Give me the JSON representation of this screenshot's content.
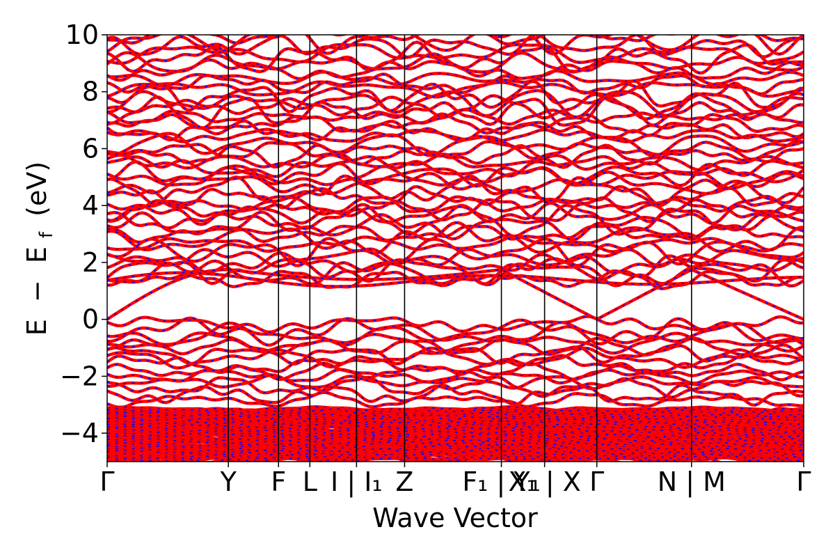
{
  "chart_data": {
    "type": "line",
    "title": "",
    "xlabel": "Wave Vector",
    "ylabel_parts": [
      "E",
      "−",
      "E",
      "f",
      "(eV)"
    ],
    "ylim": [
      -5,
      10
    ],
    "yticks": [
      {
        "value": 10,
        "label": "10"
      },
      {
        "value": 8,
        "label": "8"
      },
      {
        "value": 6,
        "label": "6"
      },
      {
        "value": 4,
        "label": "4"
      },
      {
        "value": 2,
        "label": "2"
      },
      {
        "value": 0,
        "label": "0"
      },
      {
        "value": -2,
        "label": "−2"
      },
      {
        "value": -4,
        "label": "−4"
      }
    ],
    "xlim": [
      0,
      1
    ],
    "high_symmetry_points": [
      {
        "x": 0.0,
        "label": "Γ"
      },
      {
        "x": 0.174,
        "label": "Y"
      },
      {
        "x": 0.246,
        "label": "F"
      },
      {
        "x": 0.291,
        "label": "L"
      },
      {
        "x": 0.358,
        "label": "I | I₁"
      },
      {
        "x": 0.427,
        "label": "Z"
      },
      {
        "x": 0.566,
        "label": "F₁ | Y₁"
      },
      {
        "x": 0.628,
        "label": "X₁ | X"
      },
      {
        "x": 0.703,
        "label": "Γ"
      },
      {
        "x": 0.839,
        "label": "N | M"
      },
      {
        "x": 1.0,
        "label": "Γ"
      }
    ],
    "series": [
      {
        "color": "#ff0000",
        "style": "solid"
      },
      {
        "color": "#0000ff",
        "style": "dashed"
      }
    ],
    "grid": false,
    "legend": "none"
  }
}
